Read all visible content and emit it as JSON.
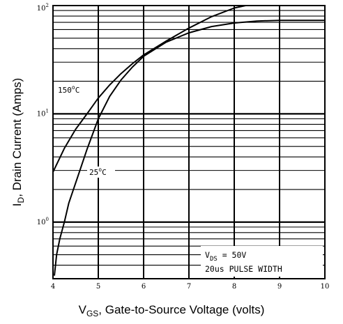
{
  "chart_data": {
    "type": "line",
    "title": "",
    "xlabel": {
      "main": "V",
      "sub": "GS",
      "rest": ", Gate-to-Source Voltage (volts)"
    },
    "ylabel": {
      "main": "I",
      "sub": "D",
      "rest": ", Drain Current (Amps)"
    },
    "x_scale": "linear",
    "y_scale": "log",
    "xlim": [
      4,
      10
    ],
    "ylim": [
      0.3,
      100
    ],
    "x_ticks": [
      "4",
      "5",
      "6",
      "7",
      "8",
      "9",
      "10"
    ],
    "y_ticks": [
      {
        "value": 1,
        "base": "10",
        "exp": "0"
      },
      {
        "value": 10,
        "base": "10",
        "exp": "1"
      },
      {
        "value": 100,
        "base": "10",
        "exp": "2"
      }
    ],
    "grid": true,
    "series": [
      {
        "name": "150°C",
        "label_parts": {
          "num": "150",
          "deg": "o",
          "unit": "C"
        },
        "x": [
          4.0,
          4.25,
          4.5,
          4.75,
          5.0,
          5.25,
          5.5,
          5.75,
          6.0,
          6.5,
          7.0,
          7.5,
          8.0,
          8.25,
          8.5,
          9.0,
          9.5,
          10.0
        ],
        "y": [
          2.9,
          4.8,
          7.2,
          10.0,
          14.0,
          18.5,
          23.5,
          29.0,
          35.0,
          47.0,
          62.0,
          79.0,
          95.0,
          100.0,
          102.0,
          103.0,
          103.0,
          103.0
        ]
      },
      {
        "name": "25°C",
        "label_parts": {
          "num": "25",
          "deg": "o",
          "unit": "C"
        },
        "x": [
          4.03,
          4.08,
          4.15,
          4.25,
          4.35,
          4.5,
          4.75,
          5.0,
          5.25,
          5.5,
          5.75,
          6.0,
          6.5,
          7.0,
          7.5,
          8.0,
          8.5,
          9.0,
          9.5,
          10.0
        ],
        "y": [
          0.32,
          0.5,
          0.7,
          1.0,
          1.5,
          2.3,
          4.7,
          9.0,
          14.5,
          20.5,
          27.0,
          34.0,
          46.0,
          56.0,
          64.0,
          69.0,
          72.0,
          73.0,
          73.0,
          73.0
        ]
      }
    ],
    "annotations": {
      "line1": {
        "main": "V",
        "sub": "DS",
        "rest": " = 50V"
      },
      "line2": "20us PULSE WIDTH"
    }
  }
}
